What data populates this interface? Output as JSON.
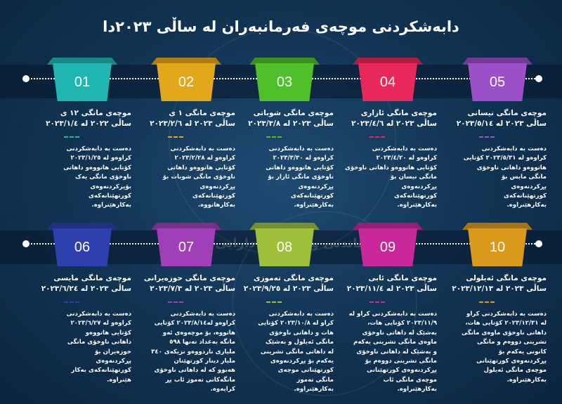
{
  "title": "دابەشکردنی موچەی فەرمانبەران  لە ساڵی ٢٠٢٣دا",
  "watermark": "راگەیاندنی وەزارەتی دارایی",
  "cards": [
    {
      "num": "01",
      "color": "#1fb5b0",
      "heading": [
        "موچەی مانگی ١٢ ی",
        "ساڵی ٢٠٢٢ لە ٢٠٢٣/١/٤"
      ],
      "body": [
        "دەست بە دابەشکردنی",
        "کراوەو لە ٢٠٢٣/١/٢٥",
        "کۆتایی هاتووەو داهاتی",
        "ناوخۆی مانگی یەک",
        "بۆپرکردنەوەی",
        "کورتهێنانەکەی",
        "بەکارهێنراوە."
      ]
    },
    {
      "num": "02",
      "color": "#e2a81c",
      "heading": [
        "موچەی مانگی ١ ی",
        "ساڵی ٢٠٢٣ لە ٢٠٢٣/٢/٦"
      ],
      "body": [
        "دەست بە دابەشکردنی",
        "کراوەو لە ٢٠٢٣/٢/٢٨",
        "کۆتایی هاتووەو داهاتی",
        "ناوخۆی مانگی شوبات بۆ",
        "پڕکردنەوەی",
        "کورتهێنانەکەی",
        "بەکارهاتووە."
      ]
    },
    {
      "num": "03",
      "color": "#4fbf2a",
      "heading": [
        "موچەی مانگی شوباتی",
        "ساڵی ٢٠٢٣ لە ٢٠٢٣/٣/٨"
      ],
      "body": [
        "دەست بە دابەشکردنی",
        "کراوەو لە ٢٠٢٣/٣/٣٠",
        "کۆتایی هاتووەو داهاتی",
        "ناوخۆی مانگی ئازار بۆ",
        "پڕکردنەوەی",
        "کورتهێنانەکەی",
        "بەکارهێنراوە."
      ]
    },
    {
      "num": "04",
      "color": "#e8285a",
      "heading": [
        "موچەی مانگی ئازاری",
        "ساڵی ٢٠٢٣ لە ٢٠٢٣/٤/٦"
      ],
      "body": [
        "دەست بە دابەشکردنی",
        "کراوەو لە ٢٠٢٣/٤/٢٠",
        "کۆتایی هاتووەو داهاتی ناوخۆی",
        "مانگی نیسان بۆ",
        "پڕکردنەوەی",
        "کورتهێنانەکەی",
        "بەکارهێنراوە."
      ]
    },
    {
      "num": "05",
      "color": "#9b4fc8",
      "heading": [
        "موچەی مانگی نیسانی",
        "ساڵی ٢٠٢٣ لە ٢٠٢٣/٥/١٤"
      ],
      "body": [
        "دەست بە دابەشکردنی",
        "کراوەو لە ٢٠٢٣/٥/٣١ کۆتایی",
        "هاتووەو داهاتی ناوخۆی",
        "مانگی مایس بۆ",
        "پڕکردنەوەی",
        "کورتهێنانەکەی",
        "بەکارهێنراوە."
      ]
    },
    {
      "num": "06",
      "color": "#2f3fae",
      "heading": [
        "موچەی مانگی مایسی",
        "ساڵی ٢٠٢٣ لە ٢٠٢٣/٦/٢٤"
      ],
      "body": [
        "دەست بە دابەشکردنی",
        "کراوەو لە ٢٠٢٣/٦/٢٧",
        "کۆتایی هاتووەو",
        "داهاتی ناوخۆی مانگی",
        "حوزەیران بۆ",
        "پڕکردنەوەی",
        "کورتهێنانەکەی بەکار",
        "هێنراوە."
      ]
    },
    {
      "num": "07",
      "color": "#a03fb8",
      "heading": [
        "موچەی مانگی حوزەیرانی",
        "ساڵی ٢٠٢٣ لە ٢٠٢٣/٧/٣"
      ],
      "body": [
        "دەست بە دابەشکردنی",
        "کراوەو لە٢٠٢٣/٨/١٤ کۆتایی",
        "هاتووە، بۆ موچەوەی ئەو",
        "مانگە بەغداد تەنها ٥٩٨",
        "ملیاری ناردووەو نزیکەی ٣٤٠",
        "ملیار دینار کورتهێنان",
        "هەبوو کە لە داهاتی ناوخۆی",
        "مانگەکانی تەموز ئاب پڕ",
        "کرایەوە."
      ]
    },
    {
      "num": "08",
      "color": "#9fc03a",
      "heading": [
        "موچەی مانگی تەموزی",
        "ساڵی ٢٠٢٣ لە ٢٠٢٣/٩/٢٥"
      ],
      "body": [
        "دەست بە دابەشکردنی",
        "کراو لە ٢٠٢٣/١٠/٨ کۆتایی",
        "هات و داهاتی ناوخۆی",
        "مانگی ئەیلول و بەشێک",
        "لە داهاتی مانگی تشرینی",
        "یەکەم بۆ پڕکردنەوەی",
        "کورتهێنانی موچەی",
        "مانگی تەموز",
        "بەکارهێنراوە."
      ]
    },
    {
      "num": "09",
      "color": "#c8289a",
      "heading": [
        "موچەی مانگی ئابی",
        "ساڵی ٢٠٢٣ لە ٢٠٢٣/١١/٤"
      ],
      "body": [
        "دەست بە دابەشکردنی کراو لە",
        "٢٠٢٣/١١/٩ کۆتایی هات،",
        "بەشێک لە داهاتی ناوخۆی",
        "ماوەی مانگی  تشرینی یەکەم",
        "و بەشێک لە داهاتی ناوخۆی",
        "مانگی تشرینی دووەم بۆ",
        "پڕکردنەوەی کورتهێنانی",
        "موچەی مانگی ئاب",
        "بەکارهێنراوە."
      ]
    },
    {
      "num": "10",
      "color": "#d99a1c",
      "heading": [
        "موچەی مانگی ئەیلولی",
        "ساڵی ٢٠٢٣ لە ٢٠٢٣/١٢/١٣"
      ],
      "body": [
        "دەست بە دابەشکردنی کراو",
        "لە ٢٠٢٣/١٢/٣١ کۆتایی هات،",
        "داهاتی ناوخۆی ماوەی مانگی",
        "تشرینی دووەم و مانگی",
        "کانونی یەکەم بۆ",
        "پڕکردنەوەی کورتهێنانی",
        "موچەی مانگی ئەیلول",
        "بەکارهێنراوە."
      ]
    }
  ]
}
